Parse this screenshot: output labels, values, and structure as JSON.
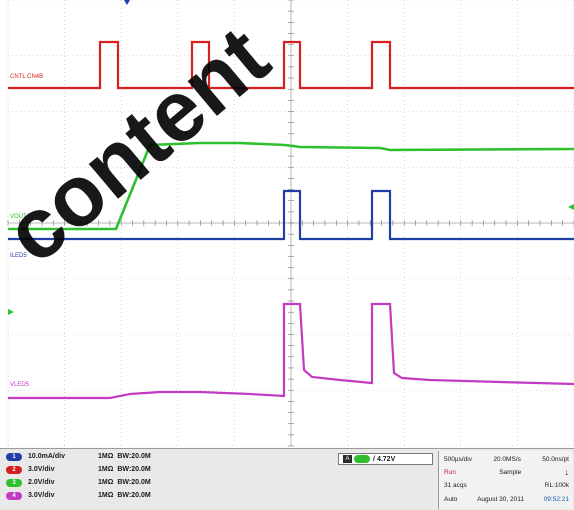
{
  "waveform_labels": {
    "ctl": "CNTL CN4B",
    "vout": "VOUT",
    "iled": "ILED5",
    "vled": "VLED5"
  },
  "channels": [
    {
      "num": "1",
      "scale": "10.0mA/div",
      "coupling": "1MΩ",
      "bw": "BW:20.0M",
      "color": "#1f3fa6"
    },
    {
      "num": "2",
      "scale": "3.0V/div",
      "coupling": "1MΩ",
      "bw": "BW:20.0M",
      "color": "#d42020"
    },
    {
      "num": "3",
      "scale": "2.0V/div",
      "coupling": "1MΩ",
      "bw": "BW:20.0M",
      "color": "#2fbf2f"
    },
    {
      "num": "4",
      "scale": "3.0V/div",
      "coupling": "1MΩ",
      "bw": "BW:20.0M",
      "color": "#c23bc2"
    }
  ],
  "trigger": {
    "channel": "A",
    "slope": "/",
    "level": "4.72V"
  },
  "timebase": {
    "scale": "500µs/div",
    "sample_rate": "20.0MS/s",
    "resolution": "50.0ns/pt",
    "state": "Run",
    "mode": "Sample",
    "acqs": "31 acqs",
    "record_length": "RL:100k",
    "trigger_mode": "Auto",
    "date": "August 30, 2011",
    "time": "09:52:21"
  },
  "watermark": "content",
  "colors": {
    "ch1": "#1f3fa6",
    "ch2": "#d42020",
    "ch3": "#2fbf2f",
    "ch4": "#c23bc2",
    "grid": "#a0a0a0"
  }
}
